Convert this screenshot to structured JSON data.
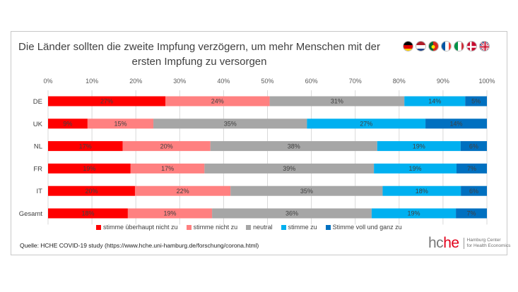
{
  "title_line1": "Die Länder sollten die zweite Impfung verzögern, um mehr Menschen mit der",
  "title_line2": "ersten Impfung zu versorgen",
  "source": "Quelle: HCHE COVID-19 study (https://www.hche.uni-hamburg.de/forschung/corona.html)",
  "logo": {
    "hc": "hc",
    "he": "he",
    "sub_line1": "Hamburg Center",
    "sub_line2": "for Health Economics"
  },
  "flags": [
    "flag-germany-icon",
    "flag-netherlands-icon",
    "flag-portugal-icon",
    "flag-france-icon",
    "flag-italy-icon",
    "flag-denmark-icon",
    "flag-uk-icon"
  ],
  "chart_data": {
    "type": "bar",
    "orientation": "horizontal-stacked-100",
    "title": "Die Länder sollten die zweite Impfung verzögern, um mehr Menschen mit der ersten Impfung zu versorgen",
    "categories": [
      "DE",
      "UK",
      "NL",
      "FR",
      "IT",
      "Gesamt"
    ],
    "x_ticks": [
      "0%",
      "10%",
      "20%",
      "30%",
      "40%",
      "50%",
      "60%",
      "70%",
      "80%",
      "90%",
      "100%"
    ],
    "xlim": [
      0,
      100
    ],
    "series": [
      {
        "name": "stimme überhaupt nicht zu",
        "color": "#ff0000",
        "values": [
          27,
          9,
          17,
          19,
          20,
          18
        ],
        "labels": [
          "27%",
          "9%",
          "17%",
          "19%",
          "20%",
          "18%"
        ]
      },
      {
        "name": "stimme nicht zu",
        "color": "#ff8080",
        "values": [
          24,
          15,
          20,
          17,
          22,
          19
        ],
        "labels": [
          "24%",
          "15%",
          "20%",
          "17%",
          "22%",
          "19%"
        ]
      },
      {
        "name": "neutral",
        "color": "#a6a6a6",
        "values": [
          31,
          35,
          38,
          39,
          35,
          36
        ],
        "labels": [
          "31%",
          "35%",
          "38%",
          "39%",
          "35%",
          "36%"
        ]
      },
      {
        "name": "stimme zu",
        "color": "#00b0f0",
        "values": [
          14,
          27,
          19,
          19,
          18,
          19
        ],
        "labels": [
          "14%",
          "27%",
          "19%",
          "19%",
          "18%",
          "19%"
        ]
      },
      {
        "name": "Stimme voll und ganz zu",
        "color": "#0070c0",
        "values": [
          5,
          14,
          6,
          7,
          6,
          7
        ],
        "labels": [
          "5%",
          "14%",
          "6%",
          "7%",
          "6%",
          "7%"
        ]
      }
    ],
    "legend_position": "bottom"
  }
}
